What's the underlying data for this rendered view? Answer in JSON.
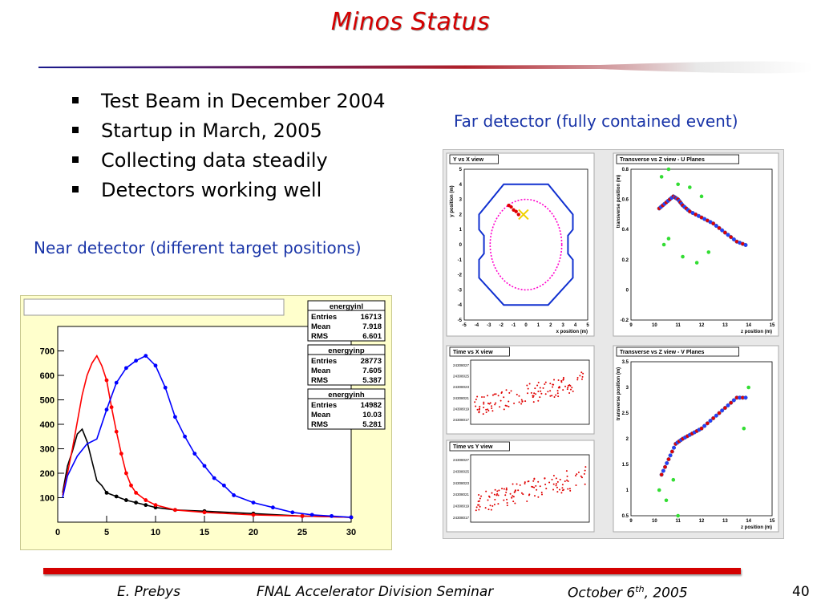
{
  "slide": {
    "title": "Minos Status",
    "bullets": [
      "Test Beam in December 2004",
      "Startup in March, 2005",
      "Collecting data steadily",
      "Detectors working well"
    ],
    "near_caption": "Near detector (different target positions)",
    "far_caption": "Far detector (fully contained event)"
  },
  "colors": {
    "title": "#d40000",
    "caption": "#1a35a8",
    "rule_red": "#d40000",
    "rule_blue": "#1a1a8c"
  },
  "footer": {
    "author": "E. Prebys",
    "event": "FNAL Accelerator Division Seminar",
    "date_prefix": "October 6",
    "date_sup": "th",
    "date_suffix": ", 2005",
    "page": "40"
  },
  "chart_data": [
    {
      "type": "line",
      "series": [
        {
          "name": "energyinl",
          "color": "black",
          "x": [
            0.5,
            1,
            1.5,
            2,
            2.5,
            3,
            3.5,
            4,
            4.5,
            5,
            6,
            7,
            8,
            9,
            10,
            12,
            15,
            20,
            25,
            30
          ],
          "values": [
            120,
            230,
            290,
            360,
            380,
            330,
            250,
            170,
            150,
            120,
            105,
            90,
            80,
            70,
            60,
            50,
            45,
            35,
            25,
            20
          ]
        },
        {
          "name": "energyinp",
          "color": "red",
          "x": [
            0.5,
            1,
            1.5,
            2,
            2.5,
            3,
            3.5,
            4,
            4.5,
            5,
            5.5,
            6,
            6.5,
            7,
            7.5,
            8,
            9,
            10,
            12,
            15,
            20,
            25,
            30
          ],
          "values": [
            110,
            200,
            300,
            410,
            520,
            600,
            650,
            680,
            640,
            580,
            470,
            370,
            280,
            200,
            150,
            120,
            90,
            70,
            50,
            40,
            30,
            25,
            20
          ]
        },
        {
          "name": "energyinh",
          "color": "blue",
          "x": [
            0.5,
            1,
            2,
            3,
            4,
            5,
            6,
            7,
            8,
            9,
            10,
            11,
            12,
            13,
            14,
            15,
            16,
            17,
            18,
            20,
            22,
            24,
            26,
            28,
            30
          ],
          "values": [
            100,
            190,
            270,
            320,
            340,
            460,
            570,
            630,
            660,
            680,
            640,
            550,
            430,
            350,
            280,
            230,
            180,
            150,
            110,
            80,
            60,
            40,
            30,
            25,
            20
          ]
        }
      ],
      "xlim": [
        0,
        30
      ],
      "ylim": [
        0,
        800
      ],
      "xticks": [
        "0",
        "5",
        "10",
        "15",
        "20",
        "25",
        "30"
      ],
      "yticks": [
        "100",
        "200",
        "300",
        "400",
        "500",
        "600",
        "700"
      ],
      "stats_boxes": [
        {
          "title": "energyinl",
          "rows": [
            [
              "Entries",
              "16713"
            ],
            [
              "Mean",
              "7.918"
            ],
            [
              "RMS",
              "6.601"
            ]
          ]
        },
        {
          "title": "energyinp",
          "rows": [
            [
              "Entries",
              "28773"
            ],
            [
              "Mean",
              "7.605"
            ],
            [
              "RMS",
              "5.387"
            ]
          ]
        },
        {
          "title": "energyinh",
          "rows": [
            [
              "Entries",
              "14982"
            ],
            [
              "Mean",
              "10.03"
            ],
            [
              "RMS",
              "5.281"
            ]
          ]
        }
      ]
    },
    {
      "type": "scatter",
      "title": "Y vs X view",
      "xlabel": "x position (m)",
      "ylabel": "y position (m)",
      "xlim": [
        -5,
        5
      ],
      "ylim": [
        -5,
        5
      ],
      "xticks": [
        "-5",
        "-4",
        "-3",
        "-2",
        "-1",
        "0",
        "1",
        "2",
        "3",
        "4",
        "5"
      ],
      "yticks": [
        "5",
        "4",
        "3",
        "2",
        "1",
        "0",
        "-1",
        "-2",
        "-3",
        "-4",
        "-5"
      ],
      "points": [
        [
          -1.4,
          2.6
        ],
        [
          -1.2,
          2.5
        ],
        [
          -1.0,
          2.3
        ],
        [
          -0.8,
          2.2
        ],
        [
          -0.6,
          2.0
        ]
      ],
      "vertex": [
        -0.2,
        2.0
      ]
    },
    {
      "type": "scatter",
      "title": "Transverse vs Z view - U Planes",
      "xlabel": "z position (m)",
      "ylabel": "transverse position (m)",
      "xlim": [
        9,
        15
      ],
      "ylim": [
        -0.2,
        0.8
      ],
      "xticks": [
        "9",
        "10",
        "11",
        "12",
        "13",
        "14",
        "15"
      ],
      "yticks": [
        "-0.2",
        "0",
        "0.2",
        "0.4",
        "0.6",
        "0.8"
      ],
      "track": [
        [
          10.2,
          0.54
        ],
        [
          10.5,
          0.58
        ],
        [
          10.8,
          0.62
        ],
        [
          11.0,
          0.6
        ],
        [
          11.2,
          0.56
        ],
        [
          11.5,
          0.52
        ],
        [
          12.0,
          0.48
        ],
        [
          12.5,
          0.44
        ],
        [
          13.0,
          0.38
        ],
        [
          13.5,
          0.32
        ],
        [
          14.0,
          0.29
        ]
      ],
      "green": [
        [
          10.3,
          0.75
        ],
        [
          10.6,
          0.8
        ],
        [
          11.0,
          0.7
        ],
        [
          11.5,
          0.68
        ],
        [
          12.0,
          0.62
        ],
        [
          10.4,
          0.3
        ],
        [
          10.6,
          0.34
        ],
        [
          11.2,
          0.22
        ],
        [
          11.8,
          0.18
        ],
        [
          12.3,
          0.25
        ]
      ]
    },
    {
      "type": "scatter",
      "title": "Time vs X view",
      "xlabel": "",
      "ylabel": "",
      "xlim": [
        0,
        1
      ],
      "ylim": [
        0,
        1
      ],
      "yticks": [
        "24308027",
        "24308025",
        "24308023",
        "24308021",
        "24308019",
        "24308017"
      ],
      "description_points": 120
    },
    {
      "type": "scatter",
      "title": "Time vs Y view",
      "xlabel": "",
      "ylabel": "",
      "xlim": [
        0,
        1
      ],
      "ylim": [
        0,
        1
      ],
      "yticks": [
        "24308027",
        "24308025",
        "24308023",
        "24308021",
        "24308019",
        "24308017"
      ],
      "description_points": 120
    },
    {
      "type": "scatter",
      "title": "Transverse vs Z view - V Planes",
      "xlabel": "z position (m)",
      "ylabel": "transverse position (m)",
      "xlim": [
        9,
        15
      ],
      "ylim": [
        0.5,
        3.5
      ],
      "xticks": [
        "9",
        "10",
        "11",
        "12",
        "13",
        "14",
        "15"
      ],
      "yticks": [
        "0.5",
        "1",
        "1.5",
        "2",
        "2.5",
        "3",
        "3.5"
      ],
      "track": [
        [
          10.3,
          1.3
        ],
        [
          10.6,
          1.6
        ],
        [
          10.9,
          1.9
        ],
        [
          11.2,
          2.0
        ],
        [
          11.6,
          2.1
        ],
        [
          12.0,
          2.2
        ],
        [
          12.5,
          2.4
        ],
        [
          13.0,
          2.6
        ],
        [
          13.5,
          2.8
        ],
        [
          14.0,
          2.8
        ]
      ],
      "green": [
        [
          10.2,
          1.0
        ],
        [
          10.5,
          0.8
        ],
        [
          11.0,
          0.5
        ],
        [
          13.8,
          2.2
        ],
        [
          14.0,
          3.0
        ],
        [
          10.8,
          1.2
        ]
      ]
    }
  ]
}
